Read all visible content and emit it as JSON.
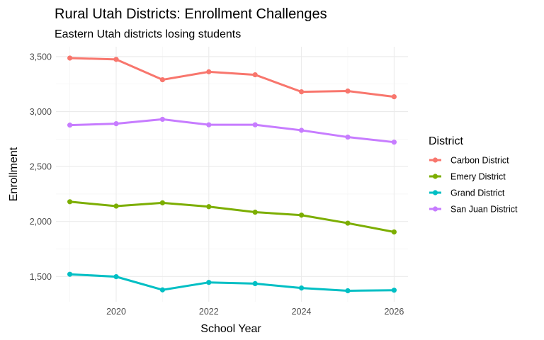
{
  "chart_data": {
    "type": "line",
    "title": "Rural Utah Districts: Enrollment Challenges",
    "subtitle": "Eastern Utah districts losing students",
    "xlabel": "School Year",
    "ylabel": "Enrollment",
    "x": [
      2019,
      2020,
      2021,
      2022,
      2023,
      2024,
      2025,
      2026
    ],
    "xlim": [
      2018.7,
      2026.3
    ],
    "ylim": [
      1270,
      3590
    ],
    "x_ticks": [
      2020,
      2022,
      2024,
      2026
    ],
    "x_tick_labels": [
      "2020",
      "2022",
      "2024",
      "2026"
    ],
    "y_ticks": [
      1500,
      2000,
      2500,
      3000,
      3500
    ],
    "y_tick_labels": [
      "1,500",
      "2,000",
      "2,500",
      "3,000",
      "3,500"
    ],
    "grid": true,
    "legend_title": "District",
    "legend_position": "right",
    "series": [
      {
        "name": "Carbon District",
        "color": "#F8766D",
        "values": [
          3487,
          3475,
          3290,
          3362,
          3335,
          3180,
          3187,
          3135
        ]
      },
      {
        "name": "Emery District",
        "color": "#7CAE00",
        "values": [
          2180,
          2140,
          2170,
          2135,
          2085,
          2058,
          1985,
          1905
        ]
      },
      {
        "name": "Grand District",
        "color": "#00BFC4",
        "values": [
          1520,
          1498,
          1378,
          1446,
          1435,
          1395,
          1370,
          1375
        ]
      },
      {
        "name": "San Juan District",
        "color": "#C77CFF",
        "values": [
          2877,
          2890,
          2930,
          2880,
          2880,
          2830,
          2768,
          2722
        ]
      }
    ]
  }
}
